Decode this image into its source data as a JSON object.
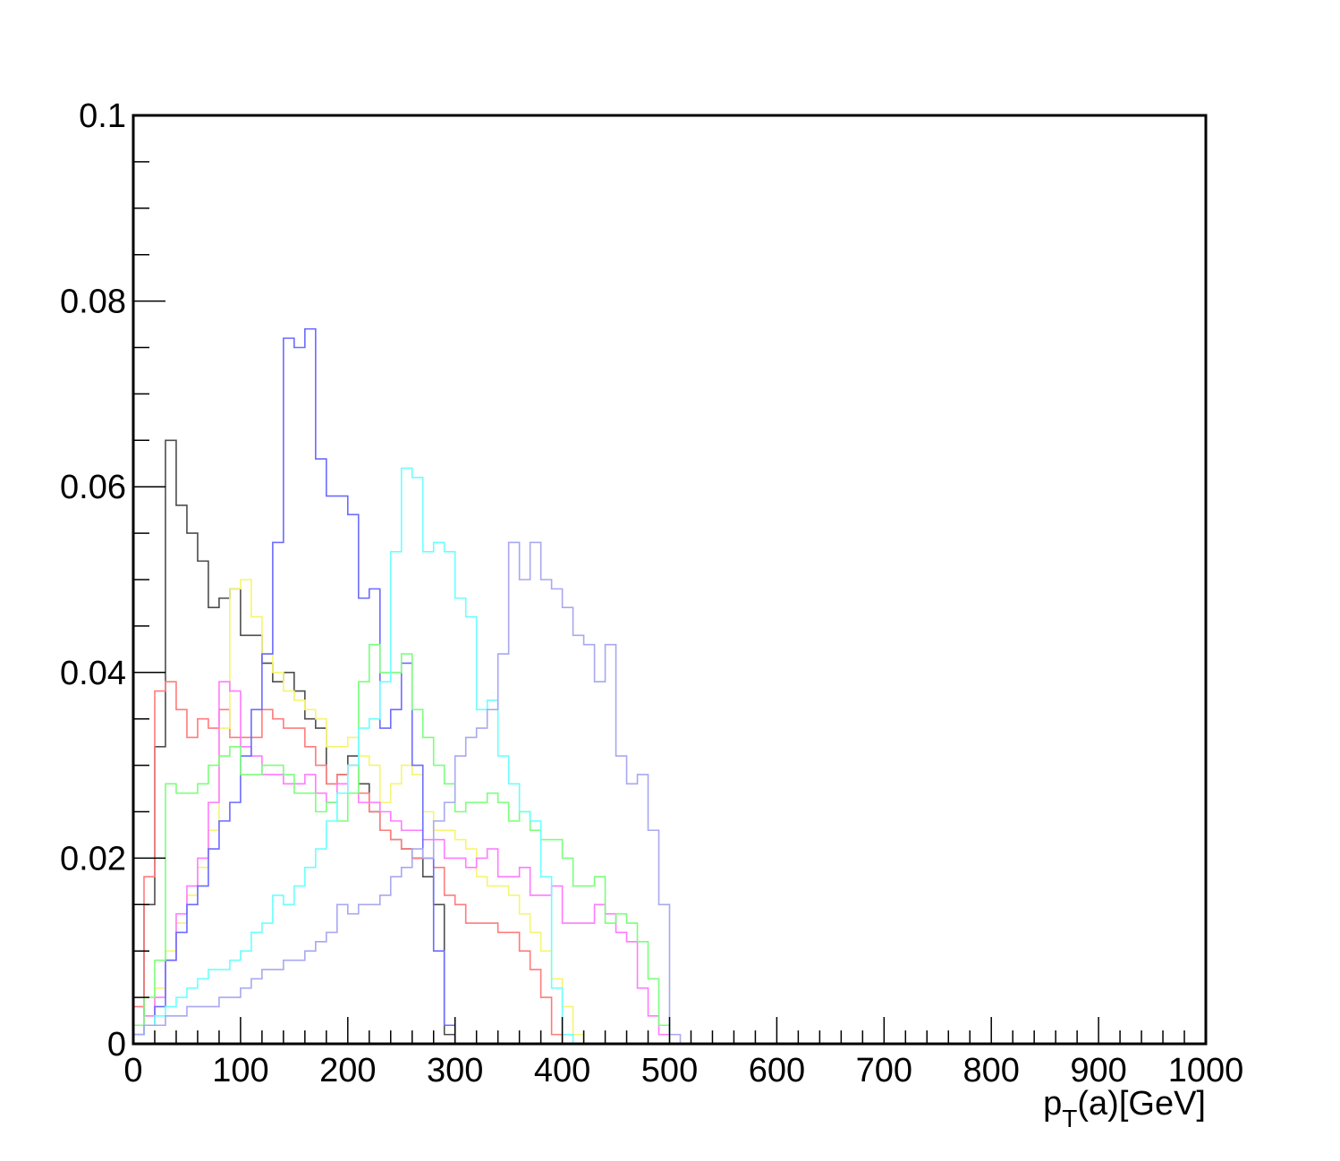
{
  "chart_data": {
    "type": "line",
    "style": "step-histogram",
    "title": "",
    "xlabel": "p_T(a)[GeV]",
    "xlabel_parts": {
      "main": "p",
      "sub": "T",
      "rest": "(a)[GeV]"
    },
    "ylabel": "",
    "xlim": [
      0,
      1000
    ],
    "ylim": [
      0,
      0.1
    ],
    "x_ticks": [
      "0",
      "100",
      "200",
      "300",
      "400",
      "500",
      "600",
      "700",
      "800",
      "900",
      "1000"
    ],
    "y_ticks": [
      "0",
      "0.02",
      "0.04",
      "0.06",
      "0.08",
      "0.1"
    ],
    "grid": false,
    "legend": "none",
    "bin_width": 10,
    "series": [
      {
        "color": "#4d4d4d",
        "values": [
          0.002,
          0.015,
          0.032,
          0.065,
          0.058,
          0.055,
          0.052,
          0.047,
          0.048,
          0.049,
          0.044,
          0.044,
          0.041,
          0.039,
          0.04,
          0.038,
          0.035,
          0.034,
          0.028,
          0.029,
          0.031,
          0.028,
          0.025,
          0.023,
          0.022,
          0.021,
          0.02,
          0.018,
          0.015,
          0.001
        ]
      },
      {
        "color": "#ff7b7b",
        "values": [
          0.004,
          0.018,
          0.038,
          0.039,
          0.036,
          0.033,
          0.035,
          0.034,
          0.036,
          0.033,
          0.033,
          0.033,
          0.036,
          0.035,
          0.034,
          0.034,
          0.032,
          0.03,
          0.028,
          0.029,
          0.03,
          0.027,
          0.025,
          0.023,
          0.022,
          0.021,
          0.02,
          0.02,
          0.019,
          0.016,
          0.015,
          0.013,
          0.013,
          0.013,
          0.012,
          0.012,
          0.01,
          0.008,
          0.005,
          0.001
        ]
      },
      {
        "color": "#f5f570",
        "values": [
          0.001,
          0.003,
          0.006,
          0.01,
          0.013,
          0.016,
          0.019,
          0.023,
          0.034,
          0.049,
          0.05,
          0.046,
          0.042,
          0.04,
          0.038,
          0.037,
          0.036,
          0.035,
          0.032,
          0.032,
          0.033,
          0.031,
          0.03,
          0.026,
          0.028,
          0.03,
          0.029,
          0.025,
          0.023,
          0.023,
          0.022,
          0.021,
          0.018,
          0.017,
          0.017,
          0.016,
          0.014,
          0.012,
          0.01,
          0.007,
          0.004,
          0.001
        ]
      },
      {
        "color": "#ff7bff",
        "values": [
          0.001,
          0.003,
          0.005,
          0.009,
          0.014,
          0.017,
          0.02,
          0.026,
          0.039,
          0.038,
          0.032,
          0.031,
          0.029,
          0.029,
          0.028,
          0.028,
          0.029,
          0.027,
          0.026,
          0.028,
          0.027,
          0.026,
          0.026,
          0.025,
          0.024,
          0.023,
          0.023,
          0.022,
          0.022,
          0.02,
          0.02,
          0.019,
          0.02,
          0.021,
          0.018,
          0.018,
          0.019,
          0.016,
          0.016,
          0.017,
          0.013,
          0.013,
          0.013,
          0.015,
          0.014,
          0.012,
          0.011,
          0.006,
          0.003,
          0.001
        ]
      },
      {
        "color": "#6b6bff",
        "values": [
          0.001,
          0.002,
          0.004,
          0.009,
          0.012,
          0.015,
          0.017,
          0.021,
          0.024,
          0.026,
          0.031,
          0.036,
          0.042,
          0.054,
          0.076,
          0.075,
          0.077,
          0.063,
          0.059,
          0.059,
          0.057,
          0.048,
          0.049,
          0.034,
          0.036,
          0.041,
          0.03,
          0.02,
          0.01,
          0.002
        ]
      },
      {
        "color": "#7bff7b",
        "values": [
          0.002,
          0.005,
          0.009,
          0.028,
          0.027,
          0.027,
          0.028,
          0.03,
          0.031,
          0.032,
          0.029,
          0.029,
          0.03,
          0.03,
          0.029,
          0.027,
          0.027,
          0.025,
          0.026,
          0.024,
          0.027,
          0.039,
          0.043,
          0.04,
          0.04,
          0.042,
          0.036,
          0.033,
          0.03,
          0.028,
          0.025,
          0.026,
          0.026,
          0.027,
          0.026,
          0.024,
          0.025,
          0.023,
          0.022,
          0.022,
          0.02,
          0.017,
          0.017,
          0.018,
          0.013,
          0.014,
          0.013,
          0.011,
          0.007,
          0.002
        ]
      },
      {
        "color": "#6bffff",
        "values": [
          0.001,
          0.002,
          0.003,
          0.004,
          0.005,
          0.006,
          0.007,
          0.008,
          0.008,
          0.009,
          0.01,
          0.012,
          0.013,
          0.016,
          0.015,
          0.017,
          0.019,
          0.021,
          0.024,
          0.027,
          0.03,
          0.034,
          0.035,
          0.039,
          0.053,
          0.062,
          0.061,
          0.053,
          0.054,
          0.053,
          0.048,
          0.046,
          0.036,
          0.037,
          0.031,
          0.028,
          0.025,
          0.024,
          0.018,
          0.006,
          0.001
        ]
      },
      {
        "color": "#a8a8f0",
        "values": [
          0.001,
          0.002,
          0.002,
          0.003,
          0.003,
          0.004,
          0.004,
          0.004,
          0.005,
          0.005,
          0.006,
          0.007,
          0.008,
          0.008,
          0.009,
          0.009,
          0.01,
          0.011,
          0.012,
          0.015,
          0.014,
          0.015,
          0.015,
          0.016,
          0.018,
          0.019,
          0.021,
          0.02,
          0.024,
          0.026,
          0.031,
          0.033,
          0.034,
          0.036,
          0.042,
          0.054,
          0.05,
          0.054,
          0.05,
          0.049,
          0.047,
          0.044,
          0.043,
          0.039,
          0.043,
          0.031,
          0.028,
          0.029,
          0.023,
          0.015,
          0.001
        ]
      }
    ]
  }
}
